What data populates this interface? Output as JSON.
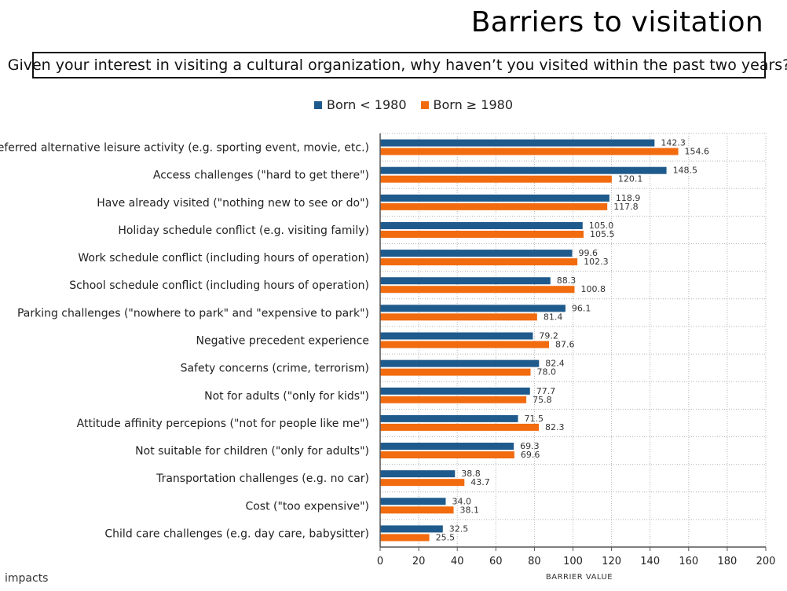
{
  "title": "Barriers to visitation",
  "question": "Given your interest in visiting a cultural organization, why haven’t you visited within the past two years?",
  "logo_text": "impacts",
  "chart_data": {
    "type": "bar",
    "orientation": "horizontal",
    "xlabel": "BARRIER VALUE",
    "ylabel": "",
    "xlim": [
      0,
      200
    ],
    "x_ticks": [
      0,
      20,
      40,
      60,
      80,
      100,
      120,
      140,
      160,
      180,
      200
    ],
    "grid": true,
    "legend_position": "top-center",
    "categories": [
      "Preferred alternative leisure activity (e.g. sporting event, movie, etc.)",
      "Access challenges (\"hard to get there\")",
      "Have already visited (\"nothing new to see or do\")",
      "Holiday schedule conflict (e.g. visiting family)",
      "Work schedule conflict (including hours of operation)",
      "School schedule conflict (including hours of operation)",
      "Parking challenges (\"nowhere to park\" and \"expensive to park\")",
      "Negative precedent experience",
      "Safety concerns (crime, terrorism)",
      "Not for adults (\"only for kids\")",
      "Attitude affinity percepions (\"not for people like me\")",
      "Not suitable for children (\"only for adults\")",
      "Transportation challenges (e.g. no car)",
      "Cost (\"too expensive\")",
      "Child care challenges (e.g. day care, babysitter)"
    ],
    "series": [
      {
        "name": "Born < 1980",
        "color": "#1f5a8c",
        "values": [
          142.3,
          148.5,
          118.9,
          105.0,
          99.6,
          88.3,
          96.1,
          79.2,
          82.4,
          77.7,
          71.5,
          69.3,
          38.8,
          34.0,
          32.5
        ],
        "labels": [
          "142.3",
          "148.5",
          "118.9",
          "105.0",
          "99.6",
          "88.3",
          "96.1",
          "79.2",
          "82.4",
          "77.7",
          "71.5",
          "69.3",
          "38.8",
          "34.0",
          "32.5"
        ]
      },
      {
        "name": "Born ≥ 1980",
        "color": "#f26b0f",
        "values": [
          154.6,
          120.1,
          117.8,
          105.5,
          102.3,
          100.8,
          81.4,
          87.6,
          78.0,
          75.8,
          82.3,
          69.6,
          43.7,
          38.1,
          25.5
        ],
        "labels": [
          "154.6",
          "120.1",
          "117.8",
          "105.5",
          "102.3",
          "100.8",
          "81.4",
          "87.6",
          "78.0",
          "75.8",
          "82.3",
          "69.6",
          "43.7",
          "38.1",
          "25.5"
        ]
      }
    ]
  }
}
